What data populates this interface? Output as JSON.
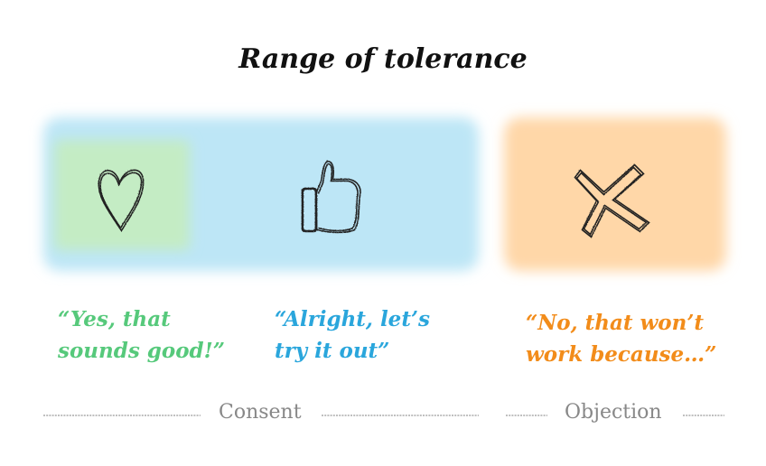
{
  "title": "Range of tolerance",
  "colors": {
    "green": "#56c97b",
    "blue": "#2aa6dc",
    "orange": "#f28c1a",
    "green_bg": "#c4ecc4",
    "blue_bg": "#bde6f6",
    "orange_bg": "#ffd7a8",
    "label_gray": "#888888"
  },
  "zones": [
    {
      "icon": "heart-icon",
      "quote": [
        "“Yes, that",
        "sounds good!”"
      ]
    },
    {
      "icon": "thumbs-up-icon",
      "quote": [
        "“Alright, let’s",
        "try it out”"
      ]
    },
    {
      "icon": "cross-icon",
      "quote": [
        "“No, that won’t",
        "work because…”"
      ]
    }
  ],
  "labels": {
    "consent": "Consent",
    "objection": "Objection"
  }
}
